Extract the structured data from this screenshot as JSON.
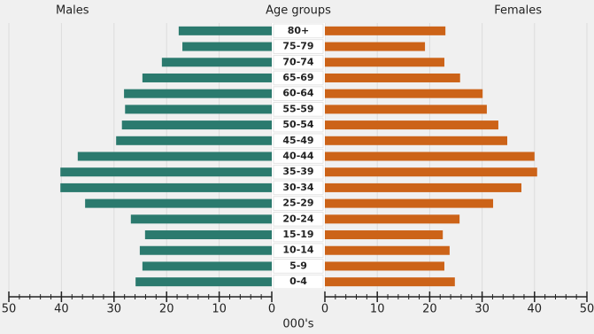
{
  "chart_data": {
    "type": "pyramid",
    "left_title": "Males",
    "center_title": "Age groups",
    "right_title": "Females",
    "xlabel": "000's",
    "categories": [
      "0-4",
      "5-9",
      "10-14",
      "15-19",
      "20-24",
      "25-29",
      "30-34",
      "35-39",
      "40-44",
      "45-49",
      "50-54",
      "55-59",
      "60-64",
      "65-69",
      "70-74",
      "75-79",
      "80+"
    ],
    "series": [
      {
        "name": "Males",
        "color": "#2b7a6e",
        "values": [
          25.9,
          24.6,
          25.1,
          24.1,
          26.8,
          35.5,
          40.2,
          40.2,
          36.9,
          29.6,
          28.5,
          27.9,
          28.1,
          24.6,
          20.9,
          17.0,
          17.7
        ]
      },
      {
        "name": "Females",
        "color": "#cc6318",
        "values": [
          24.8,
          22.8,
          23.8,
          22.5,
          25.7,
          32.1,
          37.5,
          40.5,
          40.0,
          34.8,
          33.1,
          30.9,
          30.1,
          25.8,
          22.8,
          19.1,
          23.0
        ]
      }
    ],
    "xlim": [
      0,
      50
    ],
    "xticks": [
      0,
      10,
      20,
      30,
      40,
      50
    ],
    "grid": true
  }
}
